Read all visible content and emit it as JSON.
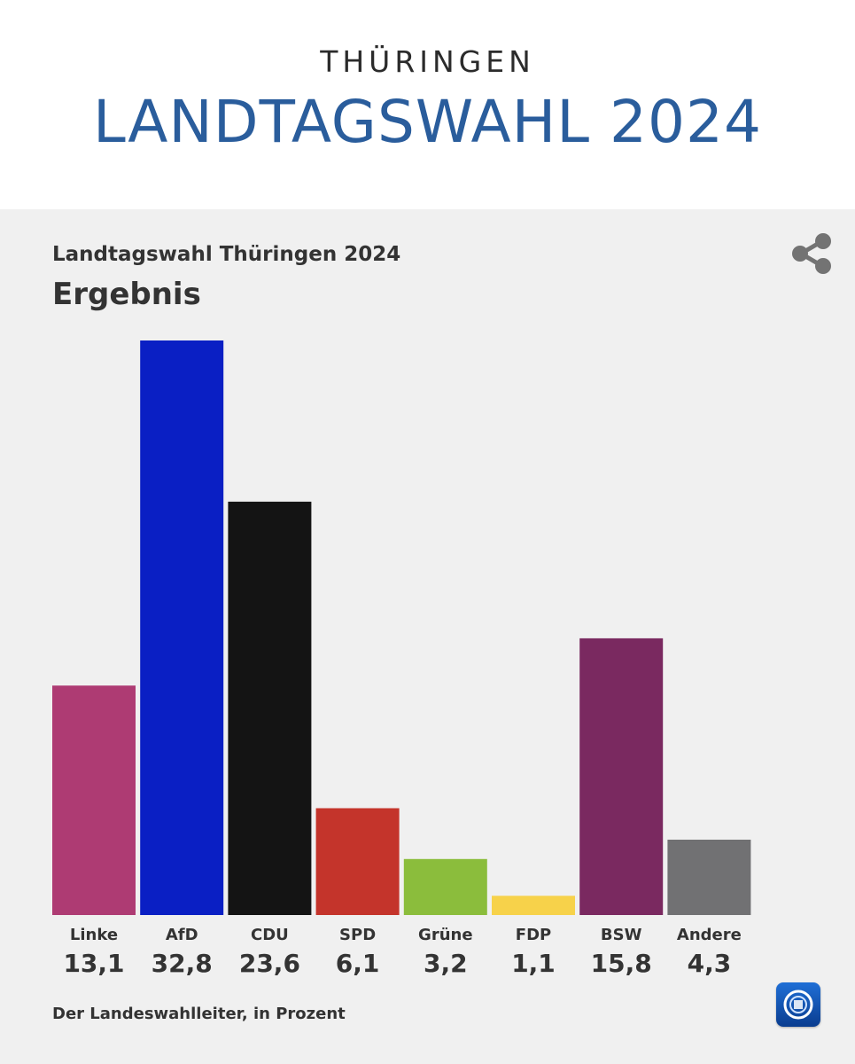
{
  "header": {
    "region": "THÜRINGEN",
    "title": "LANDTAGSWAHL 2024"
  },
  "chart_data": {
    "type": "bar",
    "supertitle": "Landtagswahl Thüringen 2024",
    "title": "Ergebnis",
    "categories": [
      "Linke",
      "AfD",
      "CDU",
      "SPD",
      "Grüne",
      "FDP",
      "BSW",
      "Andere"
    ],
    "values": [
      13.1,
      32.8,
      23.6,
      6.1,
      3.2,
      1.1,
      15.8,
      4.3
    ],
    "value_labels": [
      "13,1",
      "32,8",
      "23,6",
      "6,1",
      "3,2",
      "1,1",
      "15,8",
      "4,3"
    ],
    "colors": [
      "#ae3b73",
      "#0a1fc4",
      "#141414",
      "#c4342b",
      "#8bbd3c",
      "#f7d24a",
      "#7a2960",
      "#717173"
    ],
    "ylim": [
      0,
      32.8
    ],
    "grid": false,
    "legend": "none",
    "source": "Der Landeswahlleiter, in Prozent"
  },
  "icons": {
    "share": "share-icon",
    "logo": "tagesschau-logo-icon"
  }
}
